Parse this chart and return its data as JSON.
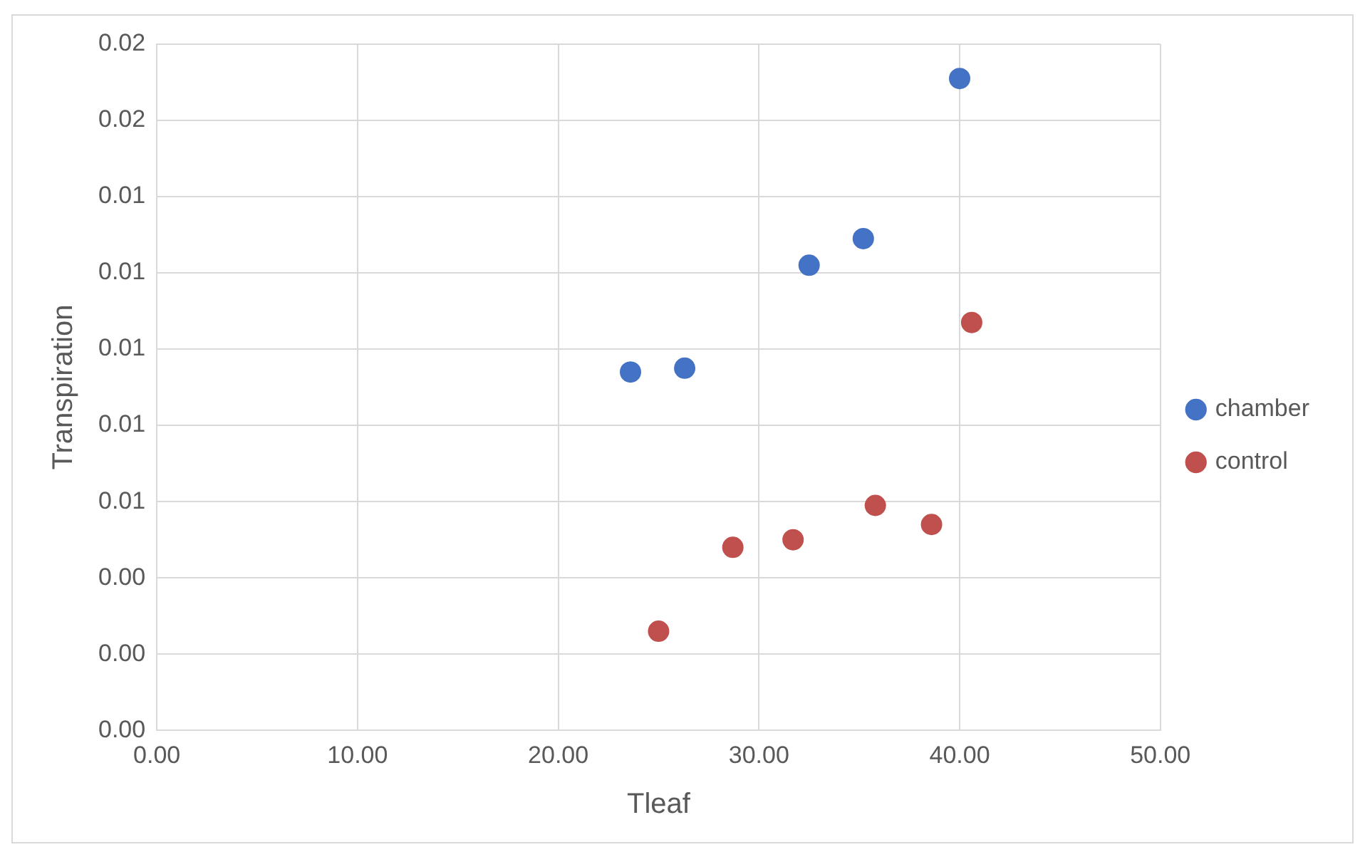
{
  "chart_data": {
    "type": "scatter",
    "xlabel": "Tleaf",
    "ylabel": "Transpiration",
    "series": [
      {
        "name": "chamber",
        "color": "#4472c4",
        "x": [
          23.6,
          26.3,
          32.5,
          35.2,
          40.0
        ],
        "values": [
          0.0094,
          0.0095,
          0.0122,
          0.0129,
          0.0171
        ]
      },
      {
        "name": "control",
        "color": "#c0504d",
        "x": [
          40.6,
          35.8,
          38.6,
          31.7,
          28.7,
          25.0
        ],
        "values": [
          0.0107,
          0.0059,
          0.0054,
          0.005,
          0.0048,
          0.0026
        ]
      }
    ],
    "xlim": [
      0,
      50
    ],
    "xticks": [
      {
        "value": 0,
        "label": "0.00"
      },
      {
        "value": 10,
        "label": "10.00"
      },
      {
        "value": 20,
        "label": "20.00"
      },
      {
        "value": 30,
        "label": "30.00"
      },
      {
        "value": 40,
        "label": "40.00"
      },
      {
        "value": 50,
        "label": "50.00"
      }
    ],
    "ylim": [
      0,
      0.018
    ],
    "yticks": [
      {
        "value": 0,
        "label": "0.00"
      },
      {
        "value": 0.002,
        "label": "0.00"
      },
      {
        "value": 0.004,
        "label": "0.00"
      },
      {
        "value": 0.006,
        "label": "0.01"
      },
      {
        "value": 0.008,
        "label": "0.01"
      },
      {
        "value": 0.01,
        "label": "0.01"
      },
      {
        "value": 0.012,
        "label": "0.01"
      },
      {
        "value": 0.014,
        "label": "0.01"
      },
      {
        "value": 0.016,
        "label": "0.02"
      },
      {
        "value": 0.018,
        "label": "0.02"
      }
    ],
    "grid": true,
    "legend": "right",
    "marker": "circle"
  }
}
